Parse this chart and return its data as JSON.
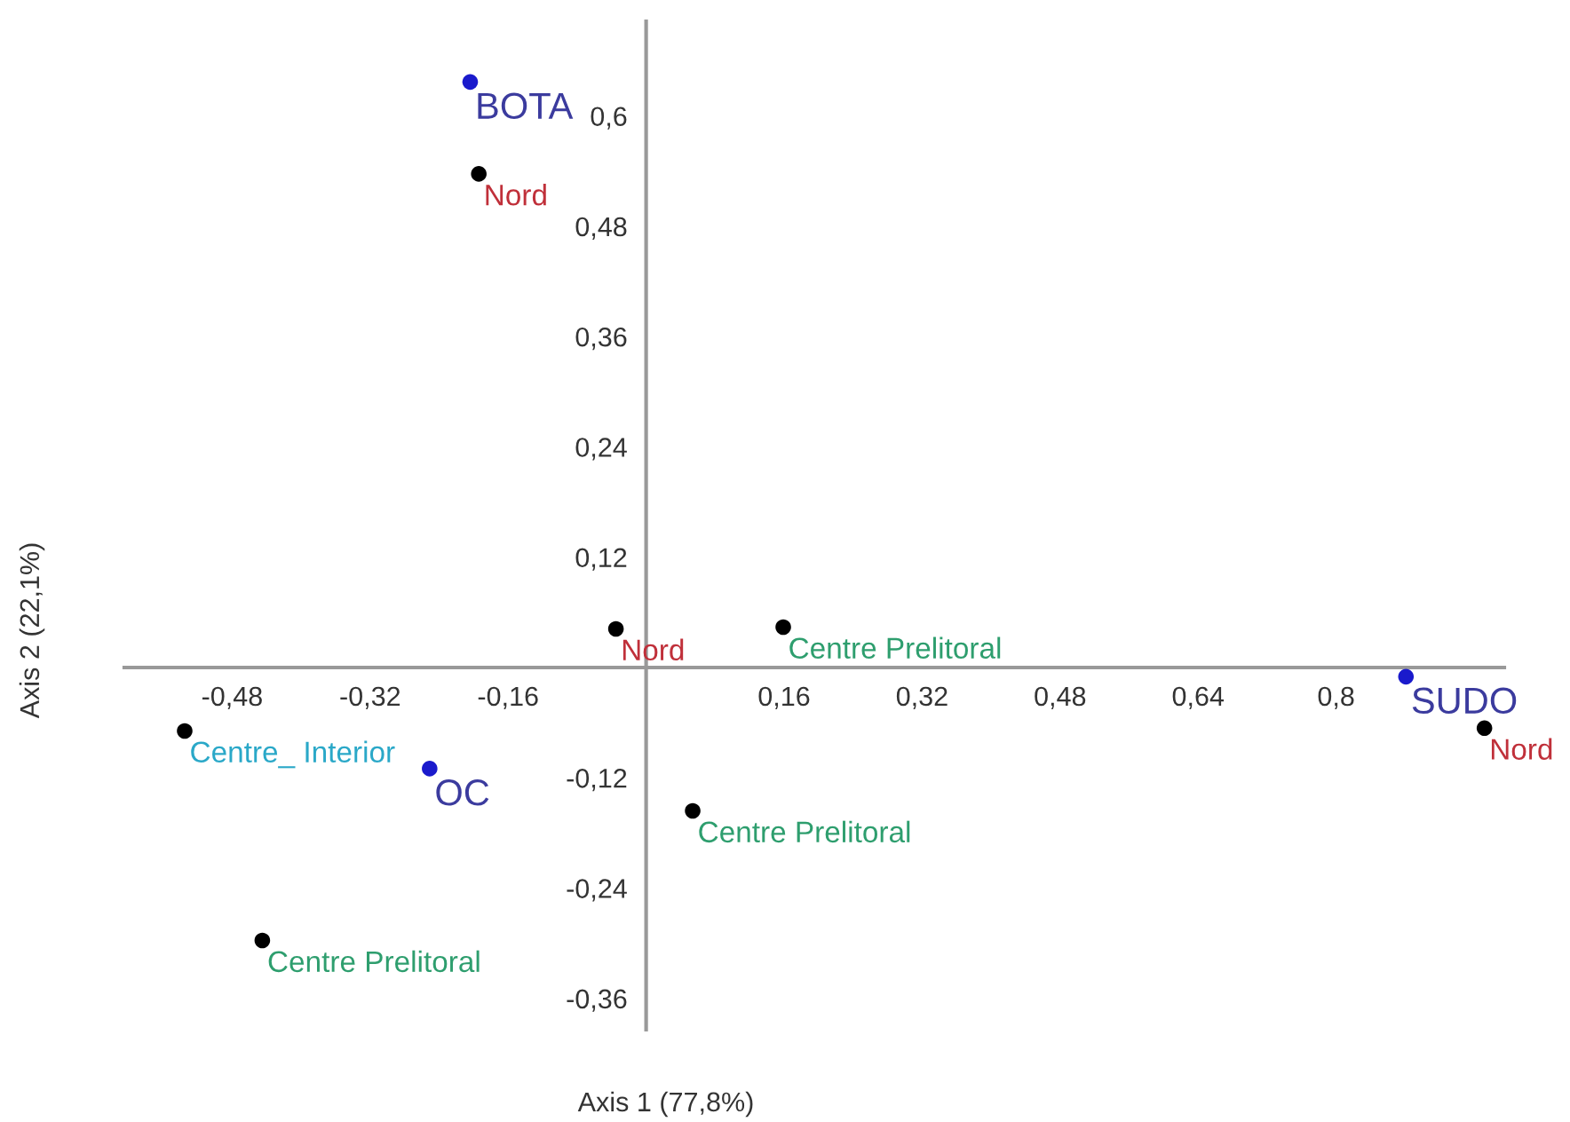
{
  "chart_data": {
    "type": "scatter",
    "xlabel": "Axis 1 (77,8%)",
    "ylabel": "Axis 2 (22,1%)",
    "xlim": [
      -0.605,
      0.995
    ],
    "ylim": [
      -0.394,
      0.703
    ],
    "xticks": [
      {
        "value": -0.48,
        "label": "-0,48"
      },
      {
        "value": -0.32,
        "label": "-0,32"
      },
      {
        "value": -0.16,
        "label": "-0,16"
      },
      {
        "value": 0.16,
        "label": "0,16"
      },
      {
        "value": 0.32,
        "label": "0,32"
      },
      {
        "value": 0.48,
        "label": "0,48"
      },
      {
        "value": 0.64,
        "label": "0,64"
      },
      {
        "value": 0.8,
        "label": "0,8"
      }
    ],
    "yticks": [
      {
        "value": -0.36,
        "label": "-0,36"
      },
      {
        "value": -0.24,
        "label": "-0,24"
      },
      {
        "value": -0.12,
        "label": "-0,12"
      },
      {
        "value": 0.12,
        "label": "0,12"
      },
      {
        "value": 0.24,
        "label": "0,24"
      },
      {
        "value": 0.36,
        "label": "0,36"
      },
      {
        "value": 0.48,
        "label": "0,48"
      },
      {
        "value": 0.6,
        "label": "0,6"
      }
    ],
    "grid": false,
    "legend": false,
    "marker": "circle",
    "series": [
      {
        "name": "BOTA",
        "color": "#1a1acc",
        "x": [
          -0.204
        ],
        "values": [
          0.637
        ]
      },
      {
        "name": "OC",
        "color": "#1a1acc",
        "x": [
          -0.251
        ],
        "values": [
          -0.11
        ]
      },
      {
        "name": "SUDO",
        "color": "#1a1acc",
        "x": [
          0.881
        ],
        "values": [
          -0.01
        ]
      },
      {
        "name": "Nord",
        "color": "#000000",
        "x": [
          -0.194,
          -0.035,
          0.972
        ],
        "values": [
          0.537,
          0.042,
          -0.066
        ]
      },
      {
        "name": "Centre Prelitoral",
        "color": "#000000",
        "x": [
          0.159,
          0.054,
          -0.445
        ],
        "values": [
          0.044,
          -0.156,
          -0.297
        ]
      },
      {
        "name": "Centre_ Interior",
        "color": "#000000",
        "x": [
          -0.535
        ],
        "values": [
          -0.069
        ]
      }
    ]
  }
}
